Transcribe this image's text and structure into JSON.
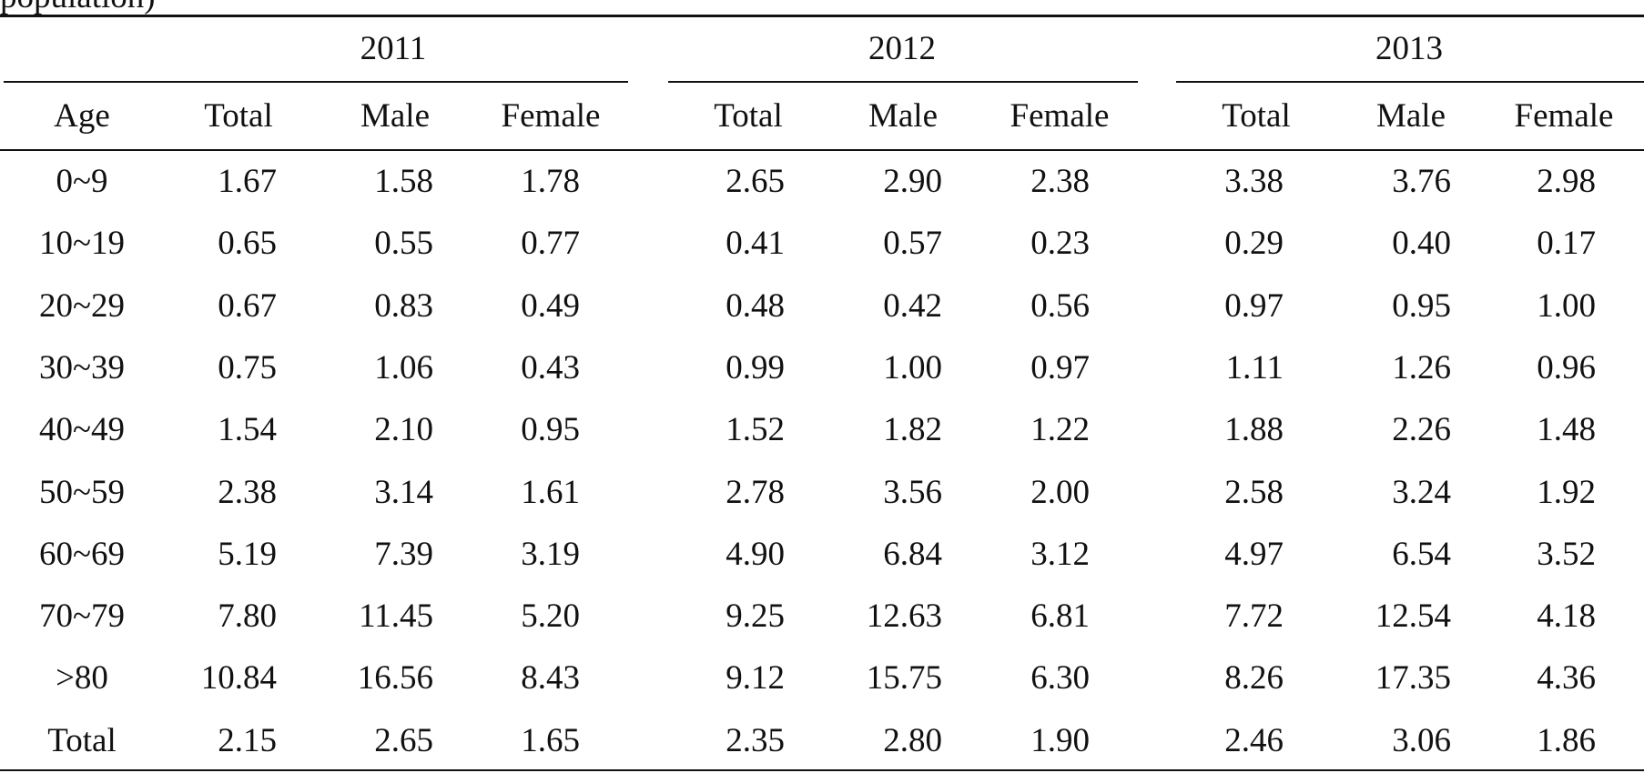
{
  "caption_fragment": "population)",
  "years": [
    "2011",
    "2012",
    "2013"
  ],
  "columns": {
    "age": "Age",
    "sub": [
      "Total",
      "Male",
      "Female"
    ]
  },
  "rows": [
    {
      "age": "0~9",
      "values": [
        [
          "1.67",
          "1.58",
          "1.78"
        ],
        [
          "2.65",
          "2.90",
          "2.38"
        ],
        [
          "3.38",
          "3.76",
          "2.98"
        ]
      ]
    },
    {
      "age": "10~19",
      "values": [
        [
          "0.65",
          "0.55",
          "0.77"
        ],
        [
          "0.41",
          "0.57",
          "0.23"
        ],
        [
          "0.29",
          "0.40",
          "0.17"
        ]
      ]
    },
    {
      "age": "20~29",
      "values": [
        [
          "0.67",
          "0.83",
          "0.49"
        ],
        [
          "0.48",
          "0.42",
          "0.56"
        ],
        [
          "0.97",
          "0.95",
          "1.00"
        ]
      ]
    },
    {
      "age": "30~39",
      "values": [
        [
          "0.75",
          "1.06",
          "0.43"
        ],
        [
          "0.99",
          "1.00",
          "0.97"
        ],
        [
          "1.11",
          "1.26",
          "0.96"
        ]
      ]
    },
    {
      "age": "40~49",
      "values": [
        [
          "1.54",
          "2.10",
          "0.95"
        ],
        [
          "1.52",
          "1.82",
          "1.22"
        ],
        [
          "1.88",
          "2.26",
          "1.48"
        ]
      ]
    },
    {
      "age": "50~59",
      "values": [
        [
          "2.38",
          "3.14",
          "1.61"
        ],
        [
          "2.78",
          "3.56",
          "2.00"
        ],
        [
          "2.58",
          "3.24",
          "1.92"
        ]
      ]
    },
    {
      "age": "60~69",
      "values": [
        [
          "5.19",
          "7.39",
          "3.19"
        ],
        [
          "4.90",
          "6.84",
          "3.12"
        ],
        [
          "4.97",
          "6.54",
          "3.52"
        ]
      ]
    },
    {
      "age": "70~79",
      "values": [
        [
          "7.80",
          "11.45",
          "5.20"
        ],
        [
          "9.25",
          "12.63",
          "6.81"
        ],
        [
          "7.72",
          "12.54",
          "4.18"
        ]
      ]
    },
    {
      "age": ">80",
      "values": [
        [
          "10.84",
          "16.56",
          "8.43"
        ],
        [
          "9.12",
          "15.75",
          "6.30"
        ],
        [
          "8.26",
          "17.35",
          "4.36"
        ]
      ]
    },
    {
      "age": "Total",
      "values": [
        [
          "2.15",
          "2.65",
          "1.65"
        ],
        [
          "2.35",
          "2.80",
          "1.90"
        ],
        [
          "2.46",
          "3.06",
          "1.86"
        ]
      ]
    }
  ]
}
